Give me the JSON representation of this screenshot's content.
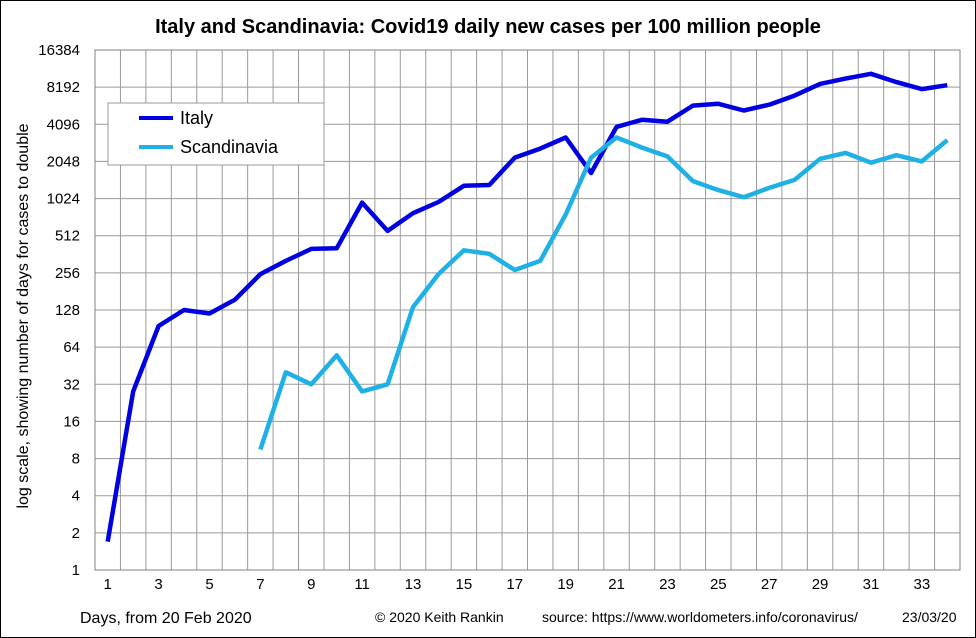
{
  "chart_data": {
    "type": "line",
    "title": "Italy and Scandinavia: Covid19 daily new cases per 100 million people",
    "ylabel": "log scale, showing number of days for cases to double",
    "xlabel": "Days, from 20 Feb 2020",
    "y_scale": "log2",
    "ylim": [
      1,
      16384
    ],
    "y_ticks": [
      "1",
      "2",
      "4",
      "8",
      "16",
      "32",
      "64",
      "128",
      "256",
      "512",
      "1024",
      "2048",
      "4096",
      "8192",
      "16384"
    ],
    "xlim": [
      0.5,
      34.5
    ],
    "x_ticks": [
      "1",
      "3",
      "5",
      "7",
      "9",
      "11",
      "13",
      "15",
      "17",
      "19",
      "21",
      "23",
      "25",
      "27",
      "29",
      "31",
      "33"
    ],
    "grid": true,
    "legend_position": "top-left",
    "series": [
      {
        "name": "Italy",
        "color": "#0000e0",
        "x": [
          1,
          2,
          3,
          4,
          5,
          6,
          7,
          8,
          9,
          10,
          11,
          12,
          13,
          14,
          15,
          16,
          17,
          18,
          19,
          20,
          21,
          22,
          23,
          24,
          25,
          26,
          27,
          28,
          29,
          30,
          31,
          32,
          33,
          34
        ],
        "values": [
          1.7,
          28,
          95,
          128,
          120,
          155,
          250,
          320,
          400,
          405,
          950,
          560,
          780,
          960,
          1300,
          1320,
          2200,
          2600,
          3200,
          1650,
          3900,
          4450,
          4300,
          5800,
          6000,
          5300,
          5900,
          7000,
          8700,
          9600,
          10500,
          9000,
          7900,
          8500
        ]
      },
      {
        "name": "Scandinavia",
        "color": "#1fb0e6",
        "x": [
          7,
          8,
          9,
          10,
          11,
          12,
          13,
          14,
          15,
          16,
          17,
          18,
          19,
          20,
          21,
          22,
          23,
          24,
          25,
          26,
          27,
          28,
          29,
          30,
          31,
          32,
          33,
          34
        ],
        "values": [
          9.5,
          40,
          32,
          55,
          28,
          32,
          135,
          250,
          390,
          365,
          270,
          320,
          760,
          2200,
          3200,
          2650,
          2250,
          1420,
          1200,
          1050,
          1250,
          1450,
          2150,
          2400,
          2000,
          2300,
          2050,
          3050
        ]
      }
    ]
  },
  "footer": {
    "copyright": "© 2020  Keith Rankin",
    "source": "source:  https://www.worldometers.info/coronavirus/",
    "date": "23/03/20"
  }
}
